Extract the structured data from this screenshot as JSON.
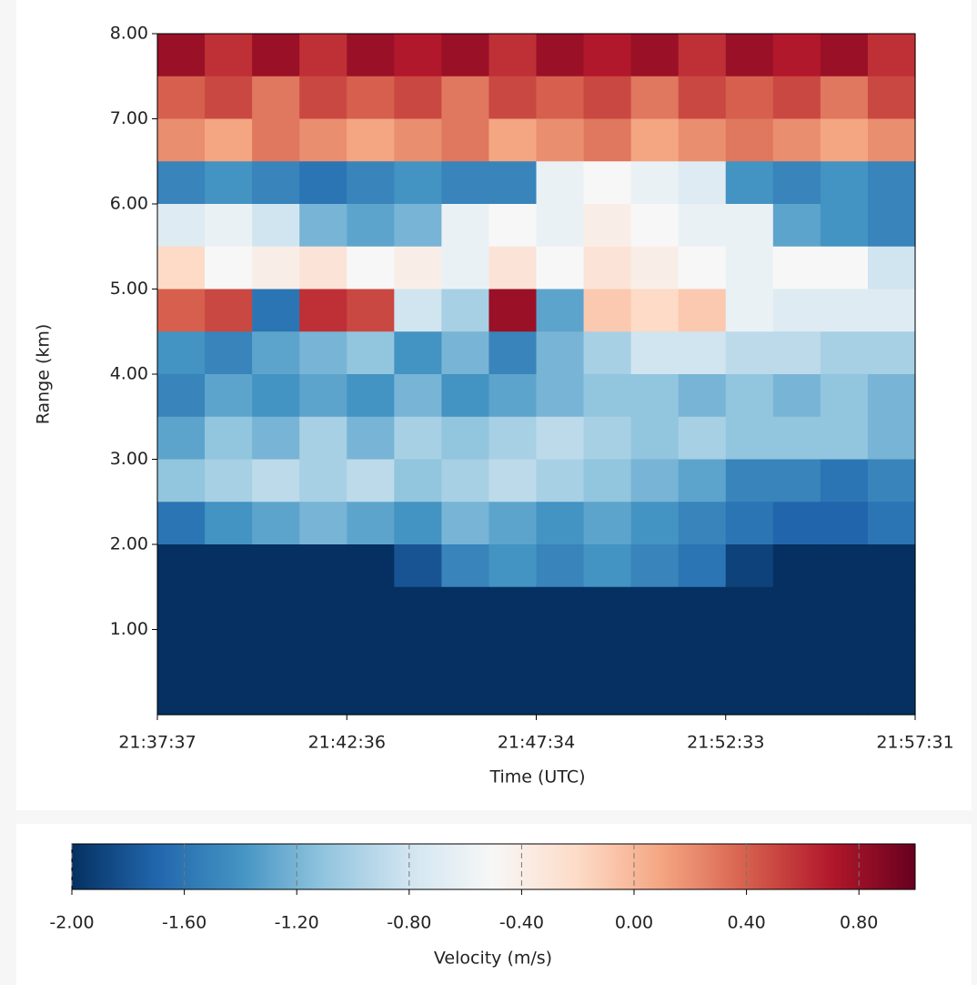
{
  "chart_data": {
    "type": "heatmap",
    "x_label": "Time (UTC)",
    "y_label": "Range (km)",
    "xticks": [
      "21:37:37",
      "21:42:36",
      "21:47:34",
      "21:52:33",
      "21:57:31"
    ],
    "ylim": [
      0,
      8
    ],
    "yticks": [
      {
        "value": 1,
        "label": "1.00"
      },
      {
        "value": 2,
        "label": "2.00"
      },
      {
        "value": 3,
        "label": "3.00"
      },
      {
        "value": 4,
        "label": "4.00"
      },
      {
        "value": 5,
        "label": "5.00"
      },
      {
        "value": 6,
        "label": "6.00"
      },
      {
        "value": 7,
        "label": "7.00"
      },
      {
        "value": 8,
        "label": "8.00"
      }
    ],
    "colormap": "RdBu_r",
    "values": [
      [
        0.8,
        0.6,
        0.8,
        0.6,
        0.8,
        0.7,
        0.8,
        0.6,
        0.8,
        0.7,
        0.8,
        0.6,
        0.8,
        0.7,
        0.8,
        0.6
      ],
      [
        0.4,
        0.5,
        0.3,
        0.5,
        0.4,
        0.5,
        0.3,
        0.5,
        0.4,
        0.5,
        0.3,
        0.5,
        0.4,
        0.5,
        0.3,
        0.5
      ],
      [
        0.2,
        0.1,
        0.3,
        0.2,
        0.1,
        0.2,
        0.3,
        0.1,
        0.2,
        0.3,
        0.1,
        0.2,
        0.3,
        0.2,
        0.1,
        0.2
      ],
      [
        -1.5,
        -1.4,
        -1.5,
        -1.6,
        -1.5,
        -1.4,
        -1.5,
        -1.5,
        -0.6,
        -0.5,
        -0.6,
        -0.7,
        -1.4,
        -1.5,
        -1.4,
        -1.5
      ],
      [
        -0.7,
        -0.6,
        -0.8,
        -1.2,
        -1.3,
        -1.2,
        -0.6,
        -0.5,
        -0.6,
        -0.4,
        -0.5,
        -0.6,
        -0.6,
        -1.3,
        -1.4,
        -1.5
      ],
      [
        -0.2,
        -0.5,
        -0.4,
        -0.3,
        -0.5,
        -0.4,
        -0.6,
        -0.3,
        -0.5,
        -0.3,
        -0.4,
        -0.5,
        -0.6,
        -0.5,
        -0.5,
        -0.8
      ],
      [
        0.4,
        0.5,
        -1.6,
        0.6,
        0.5,
        -0.8,
        -1.0,
        0.8,
        -1.3,
        -0.1,
        -0.2,
        -0.1,
        -0.6,
        -0.7,
        -0.7,
        -0.7
      ],
      [
        -1.4,
        -1.5,
        -1.3,
        -1.2,
        -1.1,
        -1.4,
        -1.2,
        -1.5,
        -1.2,
        -1.0,
        -0.8,
        -0.8,
        -0.9,
        -0.9,
        -1.0,
        -1.0
      ],
      [
        -1.5,
        -1.3,
        -1.4,
        -1.3,
        -1.4,
        -1.2,
        -1.4,
        -1.3,
        -1.2,
        -1.1,
        -1.1,
        -1.2,
        -1.1,
        -1.2,
        -1.1,
        -1.2
      ],
      [
        -1.3,
        -1.1,
        -1.2,
        -1.0,
        -1.2,
        -1.0,
        -1.1,
        -1.0,
        -0.9,
        -1.0,
        -1.1,
        -1.0,
        -1.1,
        -1.1,
        -1.1,
        -1.2
      ],
      [
        -1.1,
        -1.0,
        -0.9,
        -1.0,
        -0.9,
        -1.1,
        -1.0,
        -0.9,
        -1.0,
        -1.1,
        -1.2,
        -1.3,
        -1.5,
        -1.5,
        -1.6,
        -1.5
      ],
      [
        -1.6,
        -1.4,
        -1.3,
        -1.2,
        -1.3,
        -1.4,
        -1.2,
        -1.3,
        -1.4,
        -1.3,
        -1.4,
        -1.5,
        -1.6,
        -1.7,
        -1.7,
        -1.6
      ],
      [
        -2,
        -2,
        -2,
        -2,
        -2,
        -1.8,
        -1.5,
        -1.4,
        -1.5,
        -1.4,
        -1.5,
        -1.6,
        -1.9,
        -2,
        -2,
        -2
      ],
      [
        -2,
        -2,
        -2,
        -2,
        -2,
        -2,
        -2,
        -2,
        -2,
        -2,
        -2,
        -2,
        -2,
        -2,
        -2,
        -2
      ],
      [
        -2,
        -2,
        -2,
        -2,
        -2,
        -2,
        -2,
        -2,
        -2,
        -2,
        -2,
        -2,
        -2,
        -2,
        -2,
        -2
      ],
      [
        -2,
        -2,
        -2,
        -2,
        -2,
        -2,
        -2,
        -2,
        -2,
        -2,
        -2,
        -2,
        -2,
        -2,
        -2,
        -2
      ]
    ],
    "colorbar": {
      "label": "Velocity (m/s)",
      "clim": [
        -2,
        1
      ],
      "ticks": [
        {
          "value": -2,
          "label": "-2.00"
        },
        {
          "value": -1.6,
          "label": "-1.60"
        },
        {
          "value": -1.2,
          "label": "-1.20"
        },
        {
          "value": -0.8,
          "label": "-0.80"
        },
        {
          "value": -0.4,
          "label": "-0.40"
        },
        {
          "value": 0,
          "label": "0.00"
        },
        {
          "value": 0.4,
          "label": "0.40"
        },
        {
          "value": 0.8,
          "label": "0.80"
        }
      ]
    }
  }
}
